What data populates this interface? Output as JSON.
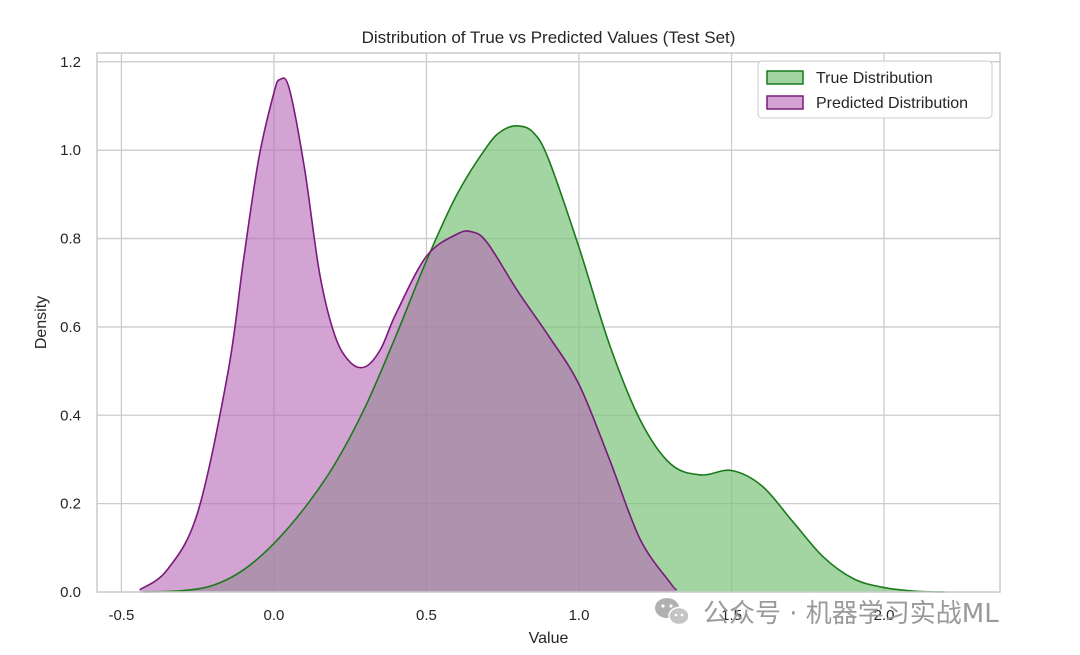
{
  "chart_data": {
    "type": "area",
    "title": "Distribution of True vs Predicted Values (Test Set)",
    "xlabel": "Value",
    "ylabel": "Density",
    "xlim": [
      -0.58,
      2.38
    ],
    "ylim": [
      0,
      1.22
    ],
    "x_ticks": [
      -0.5,
      0.0,
      0.5,
      1.0,
      1.5,
      2.0
    ],
    "x_tick_labels": [
      "-0.5",
      "0.0",
      "0.5",
      "1.0",
      "1.5",
      "2.0"
    ],
    "y_ticks": [
      0.0,
      0.2,
      0.4,
      0.6,
      0.8,
      1.0,
      1.2
    ],
    "y_tick_labels": [
      "0.0",
      "0.2",
      "0.4",
      "0.6",
      "0.8",
      "1.0",
      "1.2"
    ],
    "grid": true,
    "legend_position": "top-right",
    "series": [
      {
        "name": "True Distribution",
        "line_color": "#1a7a1a",
        "fill_color": "#7cc37c",
        "fill_opacity": 0.7,
        "x": [
          -0.43,
          -0.3,
          -0.2,
          -0.1,
          0.0,
          0.1,
          0.2,
          0.3,
          0.4,
          0.5,
          0.6,
          0.7,
          0.75,
          0.8,
          0.85,
          0.9,
          1.0,
          1.1,
          1.2,
          1.3,
          1.4,
          1.5,
          1.6,
          1.7,
          1.8,
          1.9,
          2.0,
          2.1,
          2.2
        ],
        "y": [
          0.0,
          0.003,
          0.015,
          0.05,
          0.11,
          0.19,
          0.29,
          0.42,
          0.58,
          0.75,
          0.9,
          1.01,
          1.045,
          1.055,
          1.04,
          0.98,
          0.78,
          0.56,
          0.39,
          0.29,
          0.265,
          0.275,
          0.24,
          0.16,
          0.08,
          0.03,
          0.01,
          0.002,
          0.0
        ]
      },
      {
        "name": "Predicted Distribution",
        "line_color": "#7a1a7a",
        "fill_color": "#b565b5",
        "fill_opacity": 0.6,
        "x": [
          -0.44,
          -0.35,
          -0.25,
          -0.15,
          -0.1,
          -0.05,
          0.0,
          0.02,
          0.05,
          0.1,
          0.15,
          0.2,
          0.25,
          0.3,
          0.35,
          0.4,
          0.5,
          0.6,
          0.65,
          0.7,
          0.8,
          0.9,
          1.0,
          1.1,
          1.2,
          1.3,
          1.32
        ],
        "y": [
          0.005,
          0.05,
          0.18,
          0.5,
          0.75,
          0.98,
          1.13,
          1.16,
          1.14,
          0.96,
          0.72,
          0.58,
          0.52,
          0.51,
          0.55,
          0.63,
          0.76,
          0.81,
          0.815,
          0.79,
          0.68,
          0.58,
          0.47,
          0.3,
          0.12,
          0.02,
          0.005
        ]
      }
    ]
  },
  "watermark": {
    "text": "公众号 · 机器学习实战ML",
    "icon": "wechat-icon"
  }
}
